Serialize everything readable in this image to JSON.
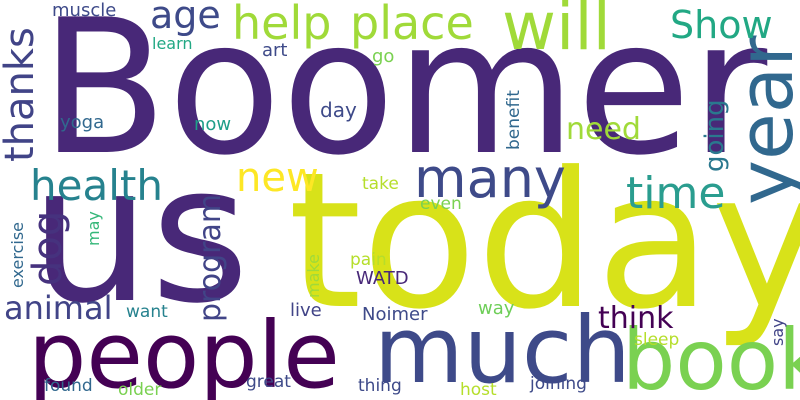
{
  "word_cloud": {
    "background": "#ffffff",
    "palette": {
      "deep_purple": "#440154",
      "purple": "#482878",
      "indigo": "#3e4a89",
      "blue": "#31688e",
      "teal": "#26828e",
      "green": "#35b779",
      "light_green": "#6ece58",
      "lime": "#b5de2b",
      "yellow": "#d8e219"
    },
    "words": [
      {
        "text": "Boomer",
        "color": "#482878"
      },
      {
        "text": "us",
        "color": "#482878"
      },
      {
        "text": "today",
        "color": "#d8e219"
      },
      {
        "text": "people",
        "color": "#440154"
      },
      {
        "text": "much",
        "color": "#3e4a89"
      },
      {
        "text": "book",
        "color": "#7ad151"
      },
      {
        "text": "year",
        "color": "#31688e"
      },
      {
        "text": "will",
        "color": "#a0da39"
      },
      {
        "text": "help",
        "color": "#a0da39"
      },
      {
        "text": "place",
        "color": "#a0da39"
      },
      {
        "text": "many",
        "color": "#3e4a89"
      },
      {
        "text": "health",
        "color": "#26828e"
      },
      {
        "text": "time",
        "color": "#2a9d8f"
      },
      {
        "text": "thanks",
        "color": "#414487"
      },
      {
        "text": "age",
        "color": "#3e4a89"
      },
      {
        "text": "Show",
        "color": "#22a884"
      },
      {
        "text": "new",
        "color": "#fde725"
      },
      {
        "text": "dog",
        "color": "#46327e"
      },
      {
        "text": "program",
        "color": "#414487"
      },
      {
        "text": "animal",
        "color": "#414487"
      },
      {
        "text": "need",
        "color": "#a0da39"
      },
      {
        "text": "going",
        "color": "#2a788e"
      },
      {
        "text": "think",
        "color": "#440154"
      },
      {
        "text": "muscle",
        "color": "#3e4a89"
      },
      {
        "text": "learn",
        "color": "#22a884"
      },
      {
        "text": "art",
        "color": "#3e4a89"
      },
      {
        "text": "go",
        "color": "#7ad151"
      },
      {
        "text": "day",
        "color": "#3e4a89"
      },
      {
        "text": "now",
        "color": "#1f9e89"
      },
      {
        "text": "yoga",
        "color": "#31688e"
      },
      {
        "text": "benefit",
        "color": "#31688e"
      },
      {
        "text": "take",
        "color": "#b5de2b"
      },
      {
        "text": "even",
        "color": "#7ad151"
      },
      {
        "text": "exercise",
        "color": "#31688e"
      },
      {
        "text": "may",
        "color": "#35b779"
      },
      {
        "text": "make",
        "color": "#a0da39"
      },
      {
        "text": "pain",
        "color": "#b5de2b"
      },
      {
        "text": "WATD",
        "color": "#482878"
      },
      {
        "text": "want",
        "color": "#26828e"
      },
      {
        "text": "live",
        "color": "#414487"
      },
      {
        "text": "Noimer",
        "color": "#3e4a89"
      },
      {
        "text": "way",
        "color": "#6ece58"
      },
      {
        "text": "say",
        "color": "#414487"
      },
      {
        "text": "sleep",
        "color": "#b5de2b"
      },
      {
        "text": "found",
        "color": "#31688e"
      },
      {
        "text": "older",
        "color": "#7ad151"
      },
      {
        "text": "great",
        "color": "#3e4a89"
      },
      {
        "text": "thing",
        "color": "#3e4a89"
      },
      {
        "text": "host",
        "color": "#b5de2b"
      },
      {
        "text": "joining",
        "color": "#3e4a89"
      }
    ]
  }
}
